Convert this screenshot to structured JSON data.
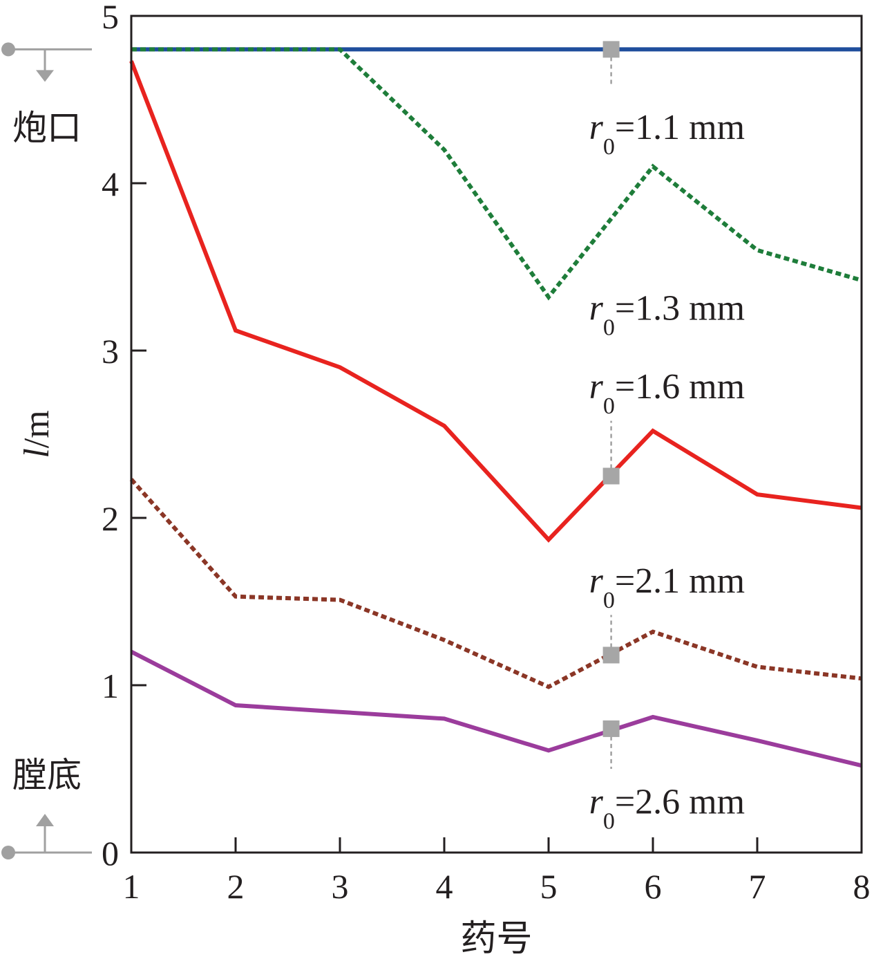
{
  "chart_data": {
    "type": "line",
    "xlabel": "药号",
    "ylabel": "l/m",
    "ylabel_italic": "l",
    "ylabel_rest": "/m",
    "x": [
      1,
      2,
      3,
      4,
      5,
      6,
      7,
      8
    ],
    "xlim": [
      1,
      8
    ],
    "ylim": [
      0,
      5
    ],
    "xticks": [
      "1",
      "2",
      "3",
      "4",
      "5",
      "6",
      "7",
      "8"
    ],
    "yticks": [
      "0",
      "1",
      "2",
      "3",
      "4",
      "5"
    ],
    "grid": false,
    "series": [
      {
        "label": "r0=1.1 mm",
        "color": "#1f4e9c",
        "style": "solid",
        "values": [
          4.8,
          4.8,
          4.8,
          4.8,
          4.8,
          4.8,
          4.8,
          4.8
        ]
      },
      {
        "label": "r0=1.3 mm",
        "color": "#1e7d3a",
        "style": "dotted",
        "values": [
          4.8,
          4.8,
          4.8,
          4.2,
          3.32,
          4.1,
          3.6,
          3.42
        ]
      },
      {
        "label": "r0=1.6 mm",
        "color": "#e8231f",
        "style": "solid",
        "values": [
          4.73,
          3.12,
          2.9,
          2.55,
          1.87,
          2.52,
          2.14,
          2.06
        ]
      },
      {
        "label": "r0=2.1 mm",
        "color": "#8b3626",
        "style": "dotted",
        "values": [
          2.23,
          1.53,
          1.51,
          1.27,
          0.99,
          1.32,
          1.11,
          1.04
        ]
      },
      {
        "label": "r0=2.6 mm",
        "color": "#9b3c9c",
        "style": "solid",
        "values": [
          1.2,
          0.88,
          0.84,
          0.8,
          0.61,
          0.81,
          0.67,
          0.52
        ]
      }
    ],
    "annotations": [
      {
        "prefix": "r",
        "sub": "0",
        "rest": "=1.1 mm",
        "marker": [
          5.6,
          4.8
        ],
        "text_at": [
          5.6,
          4.33
        ],
        "dash_to": 4.58
      },
      {
        "prefix": "r",
        "sub": "0",
        "rest": "=1.3 mm",
        "marker": null,
        "text_at": [
          5.6,
          3.25
        ],
        "dash_to": null
      },
      {
        "prefix": "r",
        "sub": "0",
        "rest": "=1.6 mm",
        "marker": [
          5.6,
          2.25
        ],
        "text_at": [
          5.6,
          2.78
        ],
        "dash_to": 2.58
      },
      {
        "prefix": "r",
        "sub": "0",
        "rest": "=2.1 mm",
        "marker": [
          5.6,
          1.18
        ],
        "text_at": [
          5.6,
          1.62
        ],
        "dash_to": 1.42
      },
      {
        "prefix": "r",
        "sub": "0",
        "rest": "=2.6 mm",
        "marker": [
          5.6,
          0.74
        ],
        "text_at": [
          5.6,
          0.3
        ],
        "dash_to": 0.5
      }
    ],
    "side_labels": {
      "top": "炮口",
      "bottom": "膛底"
    }
  }
}
